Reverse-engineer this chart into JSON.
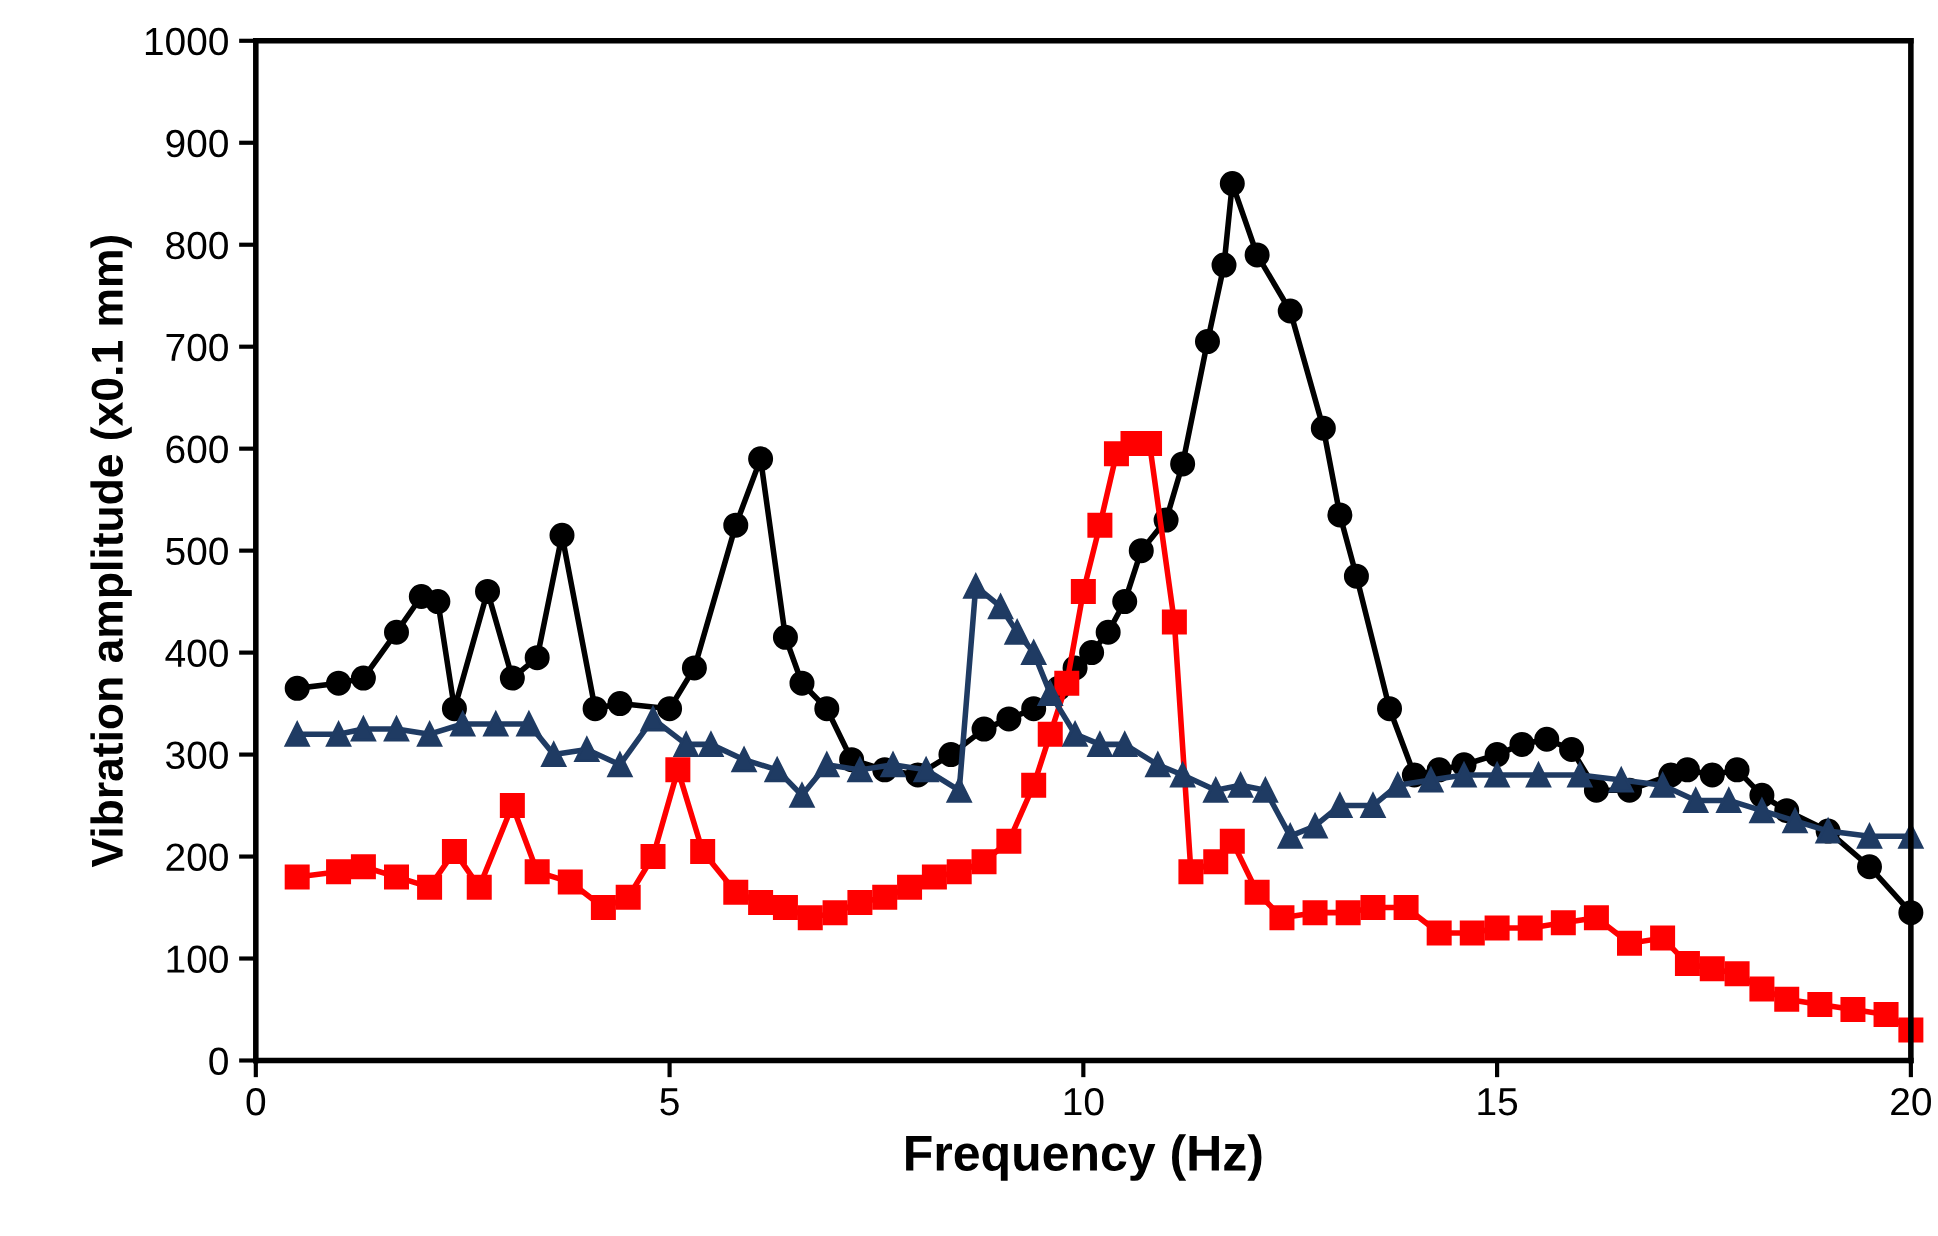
{
  "chart_data": {
    "type": "line",
    "xlabel": "Frequency (Hz)",
    "ylabel": "Vibration amplitude (x0.1 mm)",
    "xlim": [
      0,
      20
    ],
    "xticks": [
      0,
      5,
      10,
      15,
      20
    ],
    "ylim": [
      0,
      1000
    ],
    "yticks": [
      0,
      100,
      200,
      300,
      400,
      500,
      600,
      700,
      800,
      900,
      1000
    ],
    "grid": false,
    "legend": false,
    "line_style": "solid",
    "series": [
      {
        "color": "#000000",
        "marker": "circle",
        "x": [
          0.5,
          1.0,
          1.3,
          1.7,
          2.0,
          2.2,
          2.4,
          2.8,
          3.1,
          3.4,
          3.7,
          4.1,
          4.4,
          5.0,
          5.3,
          5.8,
          6.1,
          6.4,
          6.6,
          6.9,
          7.2,
          7.6,
          8.0,
          8.4,
          8.8,
          9.1,
          9.4,
          9.7,
          9.9,
          10.1,
          10.3,
          10.5,
          10.7,
          11.0,
          11.2,
          11.5,
          11.7,
          11.8,
          12.1,
          12.5,
          12.9,
          13.1,
          13.3,
          13.7,
          14.0,
          14.3,
          14.6,
          15.0,
          15.3,
          15.6,
          15.9,
          16.2,
          16.6,
          17.1,
          17.3,
          17.6,
          17.9,
          18.2,
          18.5,
          19.0,
          19.5,
          20.0
        ],
        "values": [
          365,
          370,
          375,
          420,
          455,
          450,
          345,
          460,
          375,
          395,
          515,
          345,
          350,
          345,
          385,
          525,
          590,
          415,
          370,
          345,
          295,
          285,
          280,
          300,
          325,
          335,
          345,
          365,
          385,
          400,
          420,
          450,
          500,
          530,
          585,
          705,
          780,
          860,
          790,
          735,
          620,
          535,
          475,
          345,
          280,
          285,
          290,
          300,
          310,
          315,
          305,
          265,
          265,
          280,
          285,
          280,
          285,
          260,
          245,
          225,
          190,
          145
        ]
      },
      {
        "color": "#ff0000",
        "marker": "square",
        "x": [
          0.5,
          1.0,
          1.3,
          1.7,
          2.1,
          2.4,
          2.7,
          3.1,
          3.4,
          3.8,
          4.2,
          4.5,
          4.8,
          5.1,
          5.4,
          5.8,
          6.1,
          6.4,
          6.7,
          7.0,
          7.3,
          7.6,
          7.9,
          8.2,
          8.5,
          8.8,
          9.1,
          9.4,
          9.6,
          9.8,
          10.0,
          10.2,
          10.4,
          10.6,
          10.8,
          11.1,
          11.3,
          11.6,
          11.8,
          12.1,
          12.4,
          12.8,
          13.2,
          13.5,
          13.9,
          14.3,
          14.7,
          15.0,
          15.4,
          15.8,
          16.2,
          16.6,
          17.0,
          17.3,
          17.6,
          17.9,
          18.2,
          18.5,
          18.9,
          19.3,
          19.7,
          20.0
        ],
        "values": [
          180,
          185,
          190,
          180,
          170,
          205,
          170,
          250,
          185,
          175,
          150,
          160,
          200,
          285,
          205,
          165,
          155,
          150,
          140,
          145,
          155,
          160,
          170,
          180,
          185,
          195,
          215,
          270,
          320,
          370,
          460,
          525,
          595,
          605,
          605,
          430,
          185,
          195,
          215,
          165,
          140,
          145,
          145,
          150,
          150,
          125,
          125,
          130,
          130,
          135,
          140,
          115,
          120,
          95,
          90,
          85,
          70,
          60,
          55,
          50,
          45,
          30
        ]
      },
      {
        "color": "#1f3b63",
        "marker": "triangle",
        "x": [
          0.5,
          1.0,
          1.3,
          1.7,
          2.1,
          2.5,
          2.9,
          3.3,
          3.6,
          4.0,
          4.4,
          4.8,
          5.2,
          5.5,
          5.9,
          6.3,
          6.6,
          6.9,
          7.3,
          7.7,
          8.1,
          8.5,
          8.7,
          9.0,
          9.2,
          9.4,
          9.6,
          9.9,
          10.2,
          10.5,
          10.9,
          11.2,
          11.6,
          11.9,
          12.2,
          12.5,
          12.8,
          13.1,
          13.5,
          13.8,
          14.2,
          14.6,
          15.0,
          15.5,
          16.0,
          16.5,
          17.0,
          17.4,
          17.8,
          18.2,
          18.6,
          19.0,
          19.5,
          20.0
        ],
        "values": [
          320,
          320,
          325,
          325,
          320,
          330,
          330,
          330,
          300,
          305,
          290,
          335,
          310,
          310,
          295,
          285,
          260,
          290,
          285,
          290,
          285,
          265,
          465,
          445,
          420,
          400,
          360,
          320,
          310,
          310,
          290,
          280,
          265,
          270,
          265,
          220,
          230,
          250,
          250,
          270,
          275,
          280,
          280,
          280,
          280,
          275,
          270,
          255,
          255,
          245,
          235,
          225,
          220,
          220
        ]
      }
    ]
  }
}
